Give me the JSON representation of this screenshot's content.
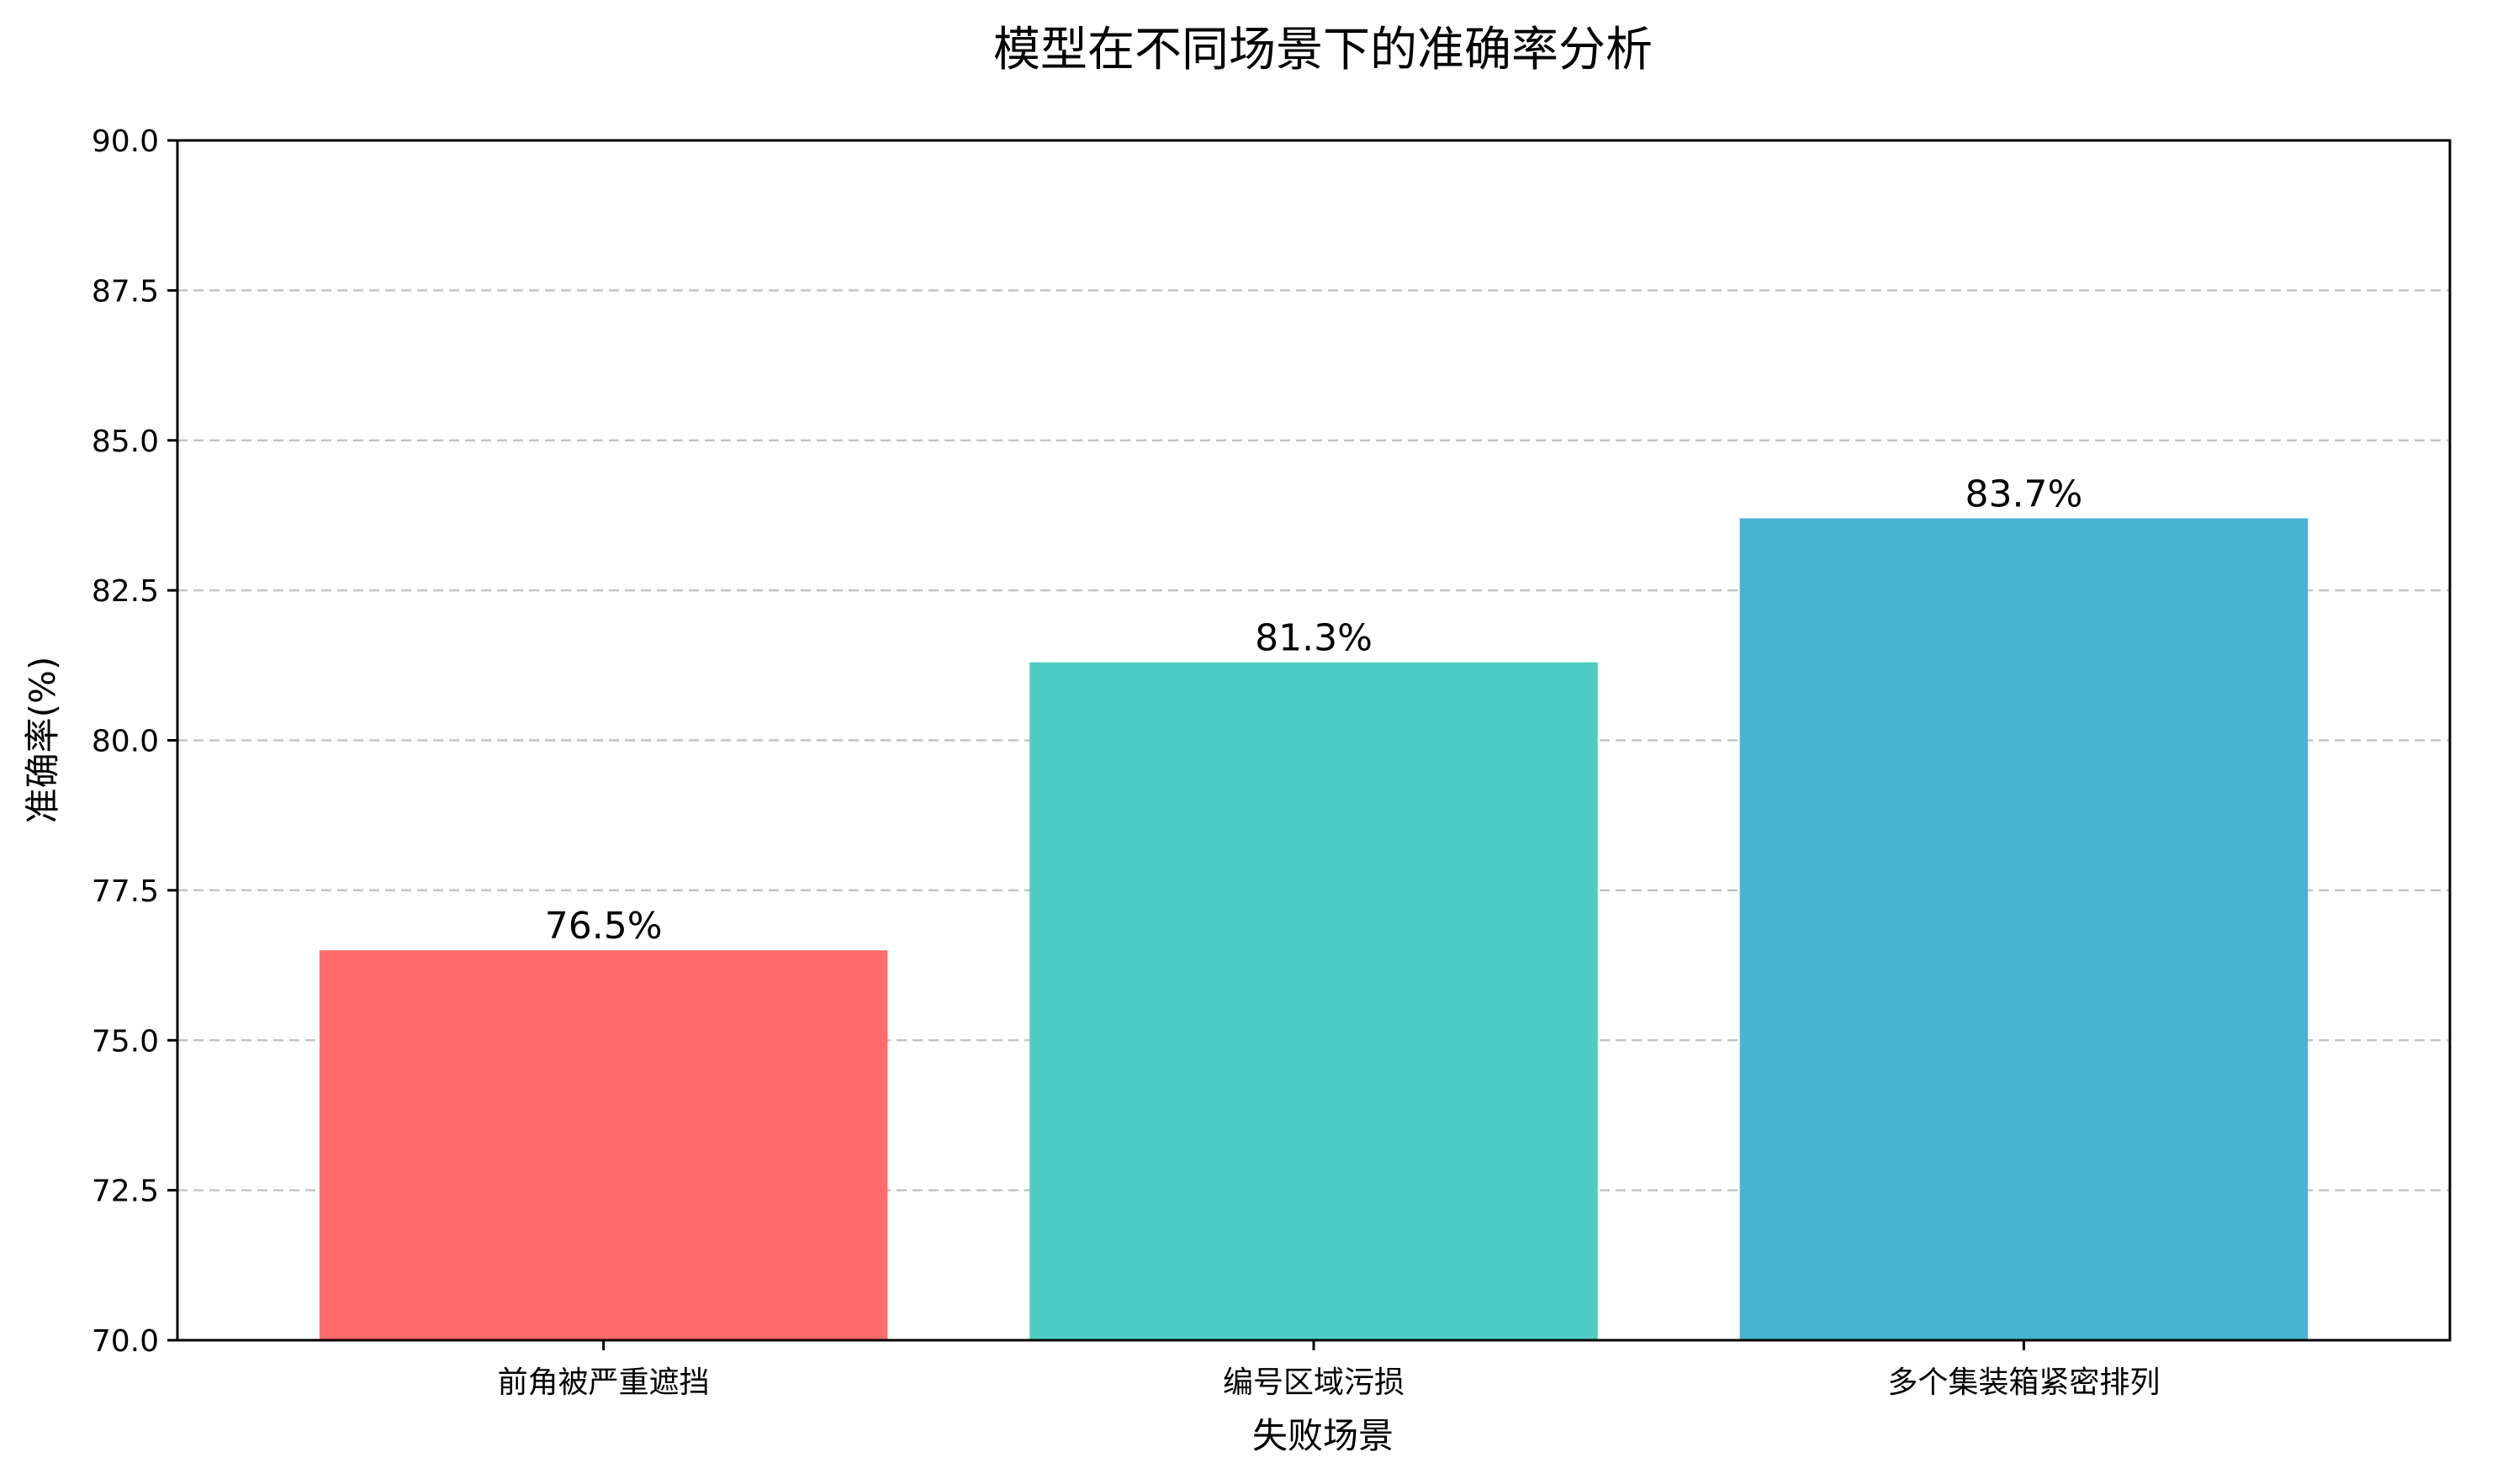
{
  "chart_data": {
    "type": "bar",
    "title": "模型在不同场景下的准确率分析",
    "xlabel": "失败场景",
    "ylabel": "准确率(%)",
    "categories": [
      "前角被严重遮挡",
      "编号区域污损",
      "多个集装箱紧密排列"
    ],
    "values": [
      76.5,
      81.3,
      83.7
    ],
    "data_labels": [
      "76.5%",
      "81.3%",
      "83.7%"
    ],
    "colors": [
      "#FF6B6B",
      "#4ECDC4",
      "#45B4D1"
    ],
    "ylim": [
      70.0,
      90.0
    ],
    "yticks": [
      "70.0",
      "72.5",
      "75.0",
      "77.5",
      "80.0",
      "82.5",
      "85.0",
      "87.5",
      "90.0"
    ],
    "grid": "y-dashed",
    "legend": "none"
  }
}
